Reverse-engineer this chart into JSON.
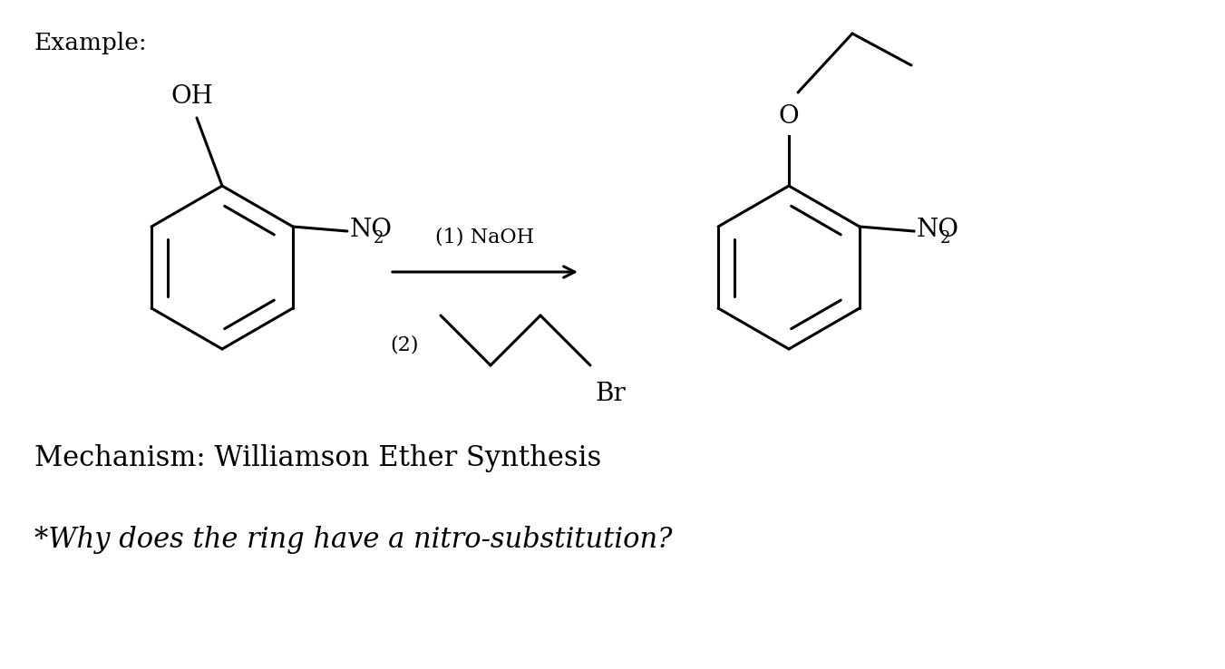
{
  "title": "Example:",
  "mechanism_text": "Mechanism: Williamson Ether Synthesis",
  "question_text": "*Why does the ring have a nitro-substitution?",
  "background_color": "#ffffff",
  "text_color": "#000000",
  "line_color": "#000000",
  "line_width": 2.2,
  "font_size_title": 19,
  "font_size_chem": 18,
  "font_size_sub": 13,
  "font_size_mechanism": 22,
  "font_size_question": 22,
  "arrow_label1": "(1) NaOH",
  "arrow_label2": "(2)"
}
